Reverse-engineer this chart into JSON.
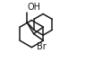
{
  "background": "#ffffff",
  "line_color": "#1a1a1a",
  "line_width": 1.1,
  "font_size_OH": 7.0,
  "font_size_Br": 7.0,
  "OH_label": "OH",
  "Br_label": "Br"
}
